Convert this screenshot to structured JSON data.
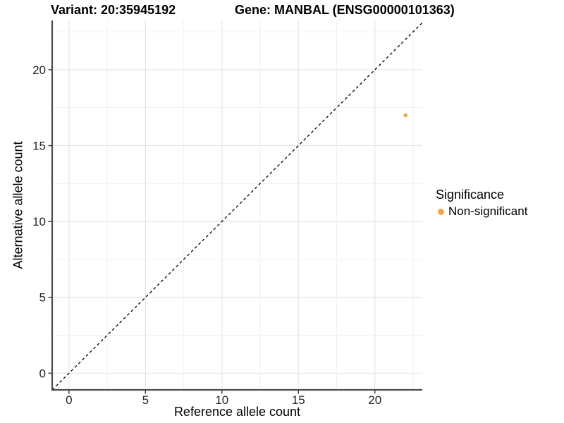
{
  "header": {
    "variant_title": "Variant: 20:35945192",
    "gene_title": "Gene: MANBAL (ENSG00000101363)"
  },
  "legend": {
    "title": "Significance",
    "items": [
      {
        "label": "Non-significant",
        "color": "#F9A343"
      }
    ]
  },
  "chart_data": {
    "type": "scatter",
    "title": "Variant: 20:35945192    Gene: MANBAL (ENSG00000101363)",
    "xlabel": "Reference allele count",
    "ylabel": "Alternative allele count",
    "xlim": [
      -1.1,
      23.1
    ],
    "ylim": [
      -1.1,
      23.25
    ],
    "x_ticks": [
      0,
      5,
      10,
      15,
      20
    ],
    "y_ticks": [
      0,
      5,
      10,
      15,
      20
    ],
    "x_minor_ticks": [
      2.5,
      7.5,
      12.5,
      17.5,
      22.5
    ],
    "y_minor_ticks": [
      2.5,
      7.5,
      12.5,
      17.5,
      22.5
    ],
    "grid": true,
    "legend_position": "right",
    "series": [
      {
        "name": "Non-significant",
        "color": "#F9A343",
        "point_radius": 2.8,
        "points": [
          {
            "x": 22,
            "y": 17
          }
        ]
      }
    ],
    "reference_line": {
      "slope": 1,
      "intercept": 0,
      "style": "dashed",
      "color": "#000000"
    }
  },
  "colors": {
    "point_orange": "#F9A343",
    "major_grid": "#E4E4E4",
    "minor_grid": "#EFEFEF",
    "axis_line": "#4D4D4D",
    "tick_text": "#262626"
  }
}
